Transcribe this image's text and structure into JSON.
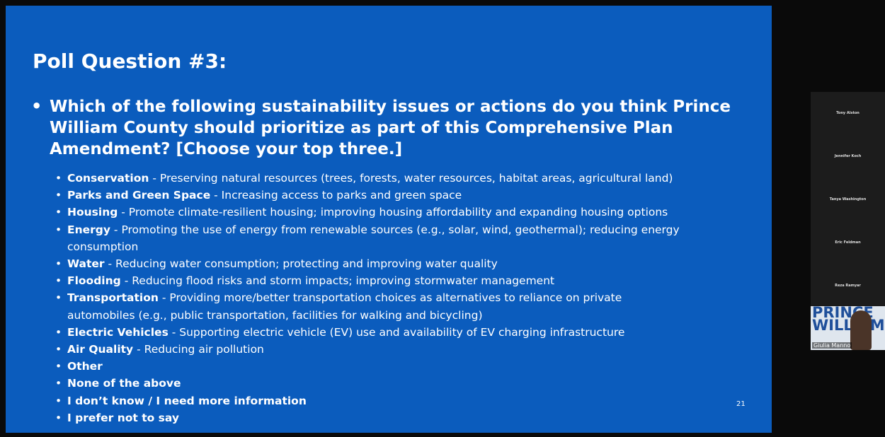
{
  "slide": {
    "title": "Poll Question #3:",
    "question": "Which of the following sustainability issues or actions do you think Prince William County should prioritize as part of this Comprehensive Plan Amendment? [Choose your top three.]",
    "items": [
      {
        "term": "Conservation",
        "description": "- Preserving natural resources (trees, forests, water resources, habitat areas, agricultural land)"
      },
      {
        "term": "Parks and Green Space",
        "description": "- Increasing access to parks and green space"
      },
      {
        "term": "Housing",
        "description": "- Promote climate-resilient housing; improving housing affordability and expanding housing options"
      },
      {
        "term": "Energy",
        "description": "- Promoting the use of energy from renewable sources (e.g., solar, wind, geothermal); reducing energy consumption"
      },
      {
        "term": "Water",
        "description": "- Reducing water consumption; protecting and improving water quality"
      },
      {
        "term": "Flooding",
        "description": "- Reducing flood risks and storm impacts; improving stormwater management"
      },
      {
        "term": "Transportation",
        "description": "- Providing more/better transportation choices as alternatives to reliance on private automobiles (e.g., public transportation, facilities for walking and bicycling)"
      },
      {
        "term": "Electric Vehicles",
        "description": "- Supporting electric vehicle (EV) use and availability of EV charging infrastructure"
      },
      {
        "term": "Air Quality",
        "description": "- Reducing air pollution"
      },
      {
        "term": "Other"
      },
      {
        "term": "None of the above"
      },
      {
        "term": "I don’t know / I need more information"
      },
      {
        "term": "I prefer not to say"
      }
    ],
    "page_number": "21"
  },
  "participants": {
    "names": [
      "Tony Alston",
      "Jennifer Koch",
      "Tanya Washington",
      "Eric Feldman",
      "Reza Ramyar"
    ],
    "video_tile": {
      "logo": "PRINCE WILLIAM",
      "name": "Giulia Manno"
    }
  }
}
